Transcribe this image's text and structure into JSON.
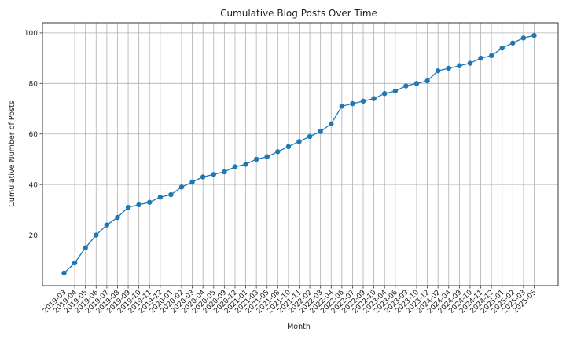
{
  "chart_data": {
    "type": "line",
    "title": "Cumulative Blog Posts Over Time",
    "xlabel": "Month",
    "ylabel": "Cumulative Number of Posts",
    "ylim": [
      0,
      104
    ],
    "yticks": [
      20,
      40,
      60,
      80,
      100
    ],
    "grid": true,
    "series_color": "#1f77b4",
    "grid_color": "#b0b0b0",
    "x": [
      "2019-03",
      "2019-04",
      "2019-05",
      "2019-06",
      "2019-07",
      "2019-08",
      "2019-09",
      "2019-10",
      "2019-11",
      "2019-12",
      "2020-01",
      "2020-02",
      "2020-03",
      "2020-04",
      "2020-05",
      "2020-09",
      "2020-12",
      "2021-01",
      "2021-03",
      "2021-05",
      "2021-08",
      "2021-10",
      "2021-11",
      "2022-02",
      "2022-03",
      "2022-04",
      "2022-06",
      "2022-07",
      "2022-09",
      "2022-10",
      "2023-04",
      "2023-06",
      "2023-09",
      "2023-10",
      "2023-12",
      "2024-02",
      "2024-04",
      "2024-09",
      "2024-10",
      "2024-11",
      "2024-12",
      "2025-01",
      "2025-02",
      "2025-03",
      "2025-05"
    ],
    "series": [
      {
        "values": [
          5,
          9,
          15,
          20,
          24,
          27,
          31,
          32,
          33,
          35,
          36,
          39,
          41,
          43,
          44,
          45,
          47,
          48,
          50,
          51,
          53,
          55,
          57,
          59,
          61,
          64,
          71,
          72,
          73,
          74,
          76,
          77,
          79,
          80,
          81,
          85,
          86,
          87,
          88,
          90,
          91,
          94,
          96,
          98,
          99
        ]
      }
    ]
  }
}
